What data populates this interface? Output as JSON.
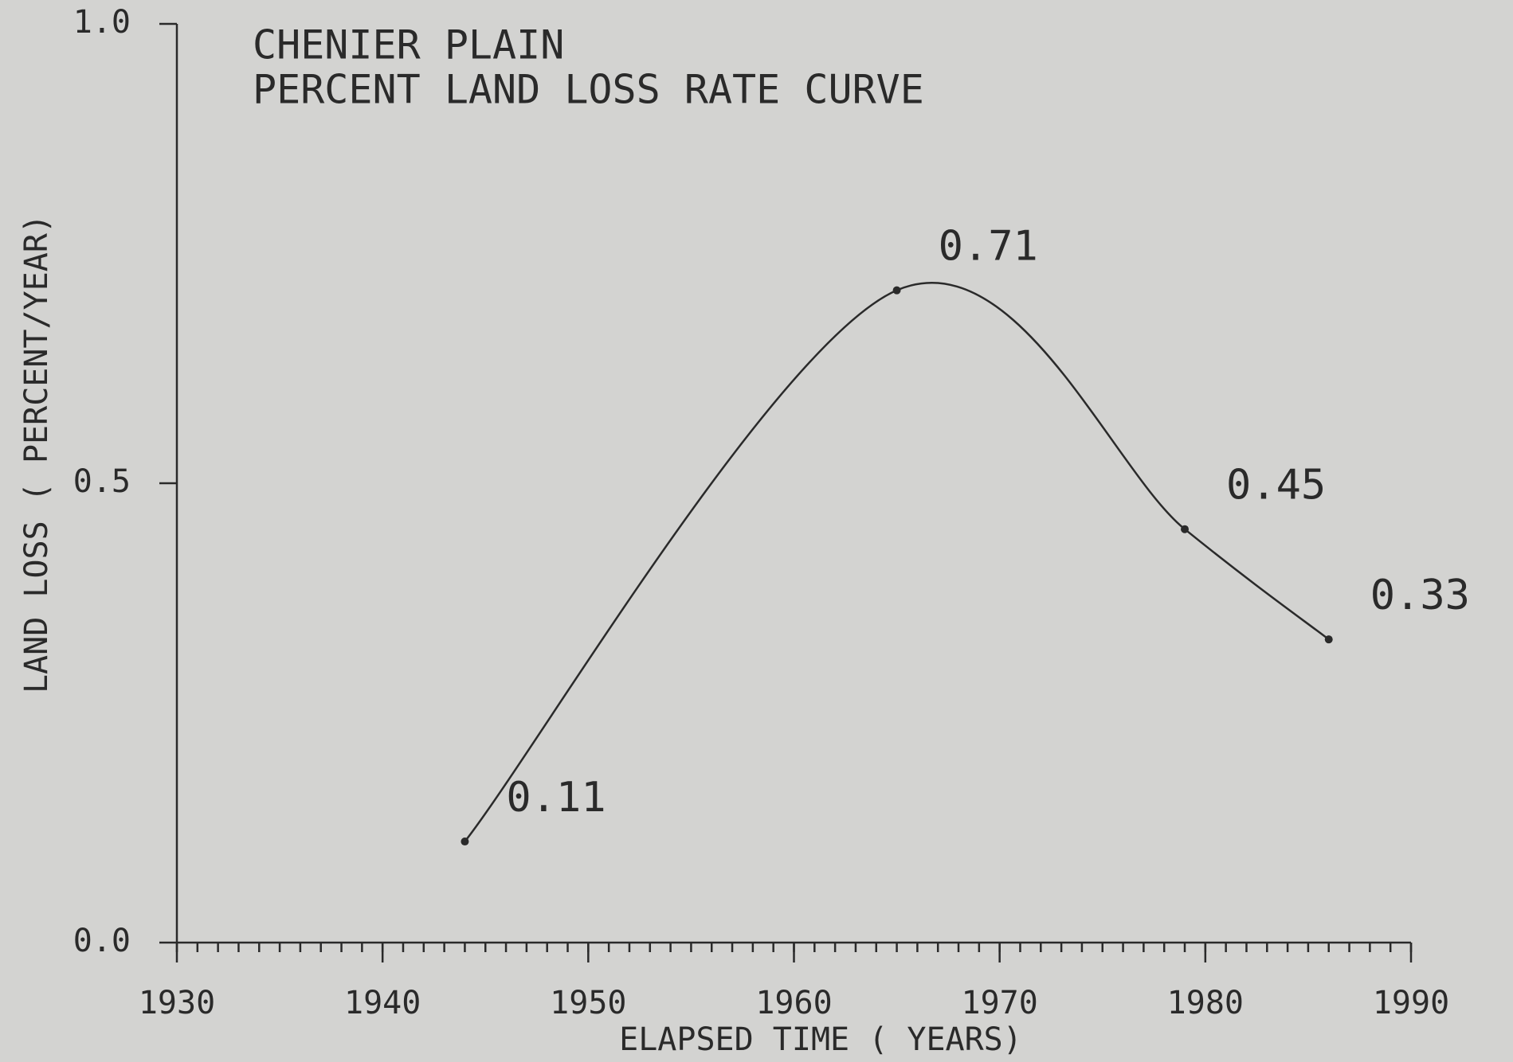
{
  "chart_data": {
    "type": "line",
    "title": "CHENIER PLAIN",
    "subtitle": "PERCENT LAND LOSS RATE CURVE",
    "x_label": "ELAPSED TIME ( YEARS)",
    "y_label": "LAND LOSS ( PERCENT/YEAR)",
    "x": [
      1944,
      1965,
      1979,
      1986
    ],
    "values": [
      0.11,
      0.71,
      0.45,
      0.33
    ],
    "color": "#2a2a2a",
    "xlim": [
      1930,
      1990
    ],
    "xticks": [
      1930,
      1940,
      1950,
      1960,
      1970,
      1980,
      1990
    ],
    "ylim": [
      0,
      1
    ],
    "yticks": [
      {
        "value": 0,
        "label": "0.0"
      },
      {
        "value": 0.5,
        "label": "0.5"
      },
      {
        "value": 1,
        "label": "1.0"
      }
    ]
  }
}
